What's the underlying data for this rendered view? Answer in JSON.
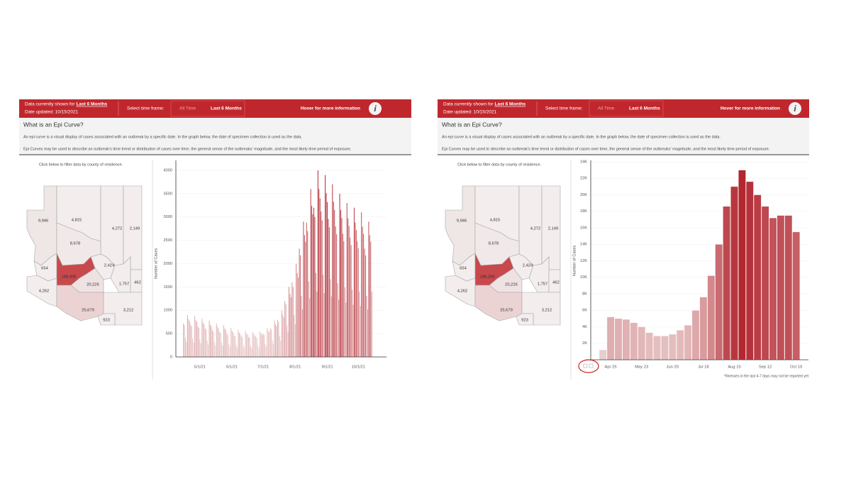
{
  "panels": [
    {
      "header": {
        "shown_prefix": "Data currently shown for",
        "shown_value": "Last 6 Months",
        "date_updated": "Date updated: 10/15/2021",
        "select_label": "Select time frame:",
        "options": [
          "All Time",
          "Last 6 Months"
        ],
        "hover": "Hover for more information",
        "info_icon": "i"
      },
      "intro": {
        "title": "What is an Epi Curve?",
        "paragraphs": [
          "An epi curve is a visual display of cases associated with an outbreak by a specific date. In the graph below, the date of specimen collection is used as the data.",
          "Epi Curves may be used to describe an outbreak's time trend or distribution of cases over time, the general sense of the outbreaks' magnitude, and the most likely time period of exposure."
        ]
      },
      "map": {
        "instruction": "Click below to filter data by county of residence.",
        "counties": [
          {
            "label": "9,946",
            "color": "#efe6e6"
          },
          {
            "label": "4,815",
            "color": "#f3eded"
          },
          {
            "label": "4,272",
            "color": "#f3eded"
          },
          {
            "label": "2,149",
            "color": "#f3eded"
          },
          {
            "label": "8,678",
            "color": "#f1e9e9"
          },
          {
            "label": "2,424",
            "color": "#f3eded"
          },
          {
            "label": "654",
            "color": "#f3eded"
          },
          {
            "label": "188,308",
            "color": "#c8484c"
          },
          {
            "label": "20,226",
            "color": "#efe2e2"
          },
          {
            "label": "1,757",
            "color": "#f3eded"
          },
          {
            "label": "462",
            "color": "#f3eded"
          },
          {
            "label": "4,262",
            "color": "#f3eded"
          },
          {
            "label": "25,679",
            "color": "#ecd3d3"
          },
          {
            "label": "3,212",
            "color": "#f3eded"
          },
          {
            "label": "923",
            "color": "#f3eded"
          }
        ]
      }
    },
    {
      "header": {
        "shown_prefix": "Data currently shown for",
        "shown_value": "Last 6 Months",
        "date_updated": "Date updated: 10/15/2021",
        "select_label": "Select time frame:",
        "options": [
          "All Time",
          "Last 6 Months"
        ],
        "hover": "Hover for more information",
        "info_icon": "i"
      },
      "intro": {
        "title": "What is an Epi Curve?",
        "paragraphs": [
          "An epi curve is a visual display of cases associated with an outbreak by a specific date. In the graph below, the date of specimen collection is used as the data.",
          "Epi Curves may be used to describe an outbreak's time trend or distribution of cases over time, the general sense of the outbreaks' magnitude, and the most likely time period of exposure."
        ]
      },
      "map": {
        "instruction": "Click below to filter data by county of residence.",
        "counties": [
          {
            "label": "9,946",
            "color": "#efe6e6"
          },
          {
            "label": "4,815",
            "color": "#f3eded"
          },
          {
            "label": "4,272",
            "color": "#f3eded"
          },
          {
            "label": "2,149",
            "color": "#f3eded"
          },
          {
            "label": "8,678",
            "color": "#f1e9e9"
          },
          {
            "label": "2,424",
            "color": "#f3eded"
          },
          {
            "label": "654",
            "color": "#f3eded"
          },
          {
            "label": "188,308",
            "color": "#c8484c"
          },
          {
            "label": "20,226",
            "color": "#efe2e2"
          },
          {
            "label": "1,757",
            "color": "#f3eded"
          },
          {
            "label": "462",
            "color": "#f3eded"
          },
          {
            "label": "4,262",
            "color": "#f3eded"
          },
          {
            "label": "25,679",
            "color": "#ecd3d3"
          },
          {
            "label": "3,212",
            "color": "#f3eded"
          },
          {
            "label": "923",
            "color": "#f3eded"
          }
        ]
      }
    }
  ],
  "chart_data": [
    {
      "type": "bar",
      "y_label": "Number of Cases",
      "categories": [
        null,
        null,
        null,
        null,
        null,
        null,
        null,
        null,
        null,
        null,
        null,
        null,
        null,
        null,
        null,
        null,
        "5/1/21",
        null,
        null,
        null,
        null,
        null,
        null,
        null,
        null,
        null,
        null,
        null,
        null,
        null,
        null,
        null,
        null,
        null,
        null,
        null,
        null,
        null,
        null,
        null,
        null,
        null,
        null,
        null,
        null,
        null,
        null,
        "6/1/21",
        null,
        null,
        null,
        null,
        null,
        null,
        null,
        null,
        null,
        null,
        null,
        null,
        null,
        null,
        null,
        null,
        null,
        null,
        null,
        null,
        null,
        null,
        null,
        null,
        null,
        null,
        null,
        null,
        null,
        "7/1/21",
        null,
        null,
        null,
        null,
        null,
        null,
        null,
        null,
        null,
        null,
        null,
        null,
        null,
        null,
        null,
        null,
        null,
        null,
        null,
        null,
        null,
        null,
        null,
        null,
        null,
        null,
        null,
        null,
        null,
        null,
        "8/1/21",
        null,
        null,
        null,
        null,
        null,
        null,
        null,
        null,
        null,
        null,
        null,
        null,
        null,
        null,
        null,
        null,
        null,
        null,
        null,
        null,
        null,
        null,
        null,
        null,
        null,
        null,
        null,
        null,
        null,
        null,
        "9/1/21",
        null,
        null,
        null,
        null,
        null,
        null,
        null,
        null,
        null,
        null,
        null,
        null,
        null,
        null,
        null,
        null,
        null,
        null,
        null,
        null,
        null,
        null,
        null,
        null,
        null,
        null,
        null,
        null,
        null,
        "10/1/21",
        null,
        null,
        null,
        null,
        null,
        null,
        null,
        null,
        null,
        null,
        null,
        null,
        null
      ],
      "values": [
        720,
        680,
        410,
        320,
        900,
        810,
        770,
        700,
        660,
        400,
        310,
        880,
        790,
        750,
        660,
        620,
        370,
        290,
        820,
        740,
        700,
        620,
        590,
        350,
        270,
        780,
        700,
        660,
        580,
        540,
        320,
        250,
        720,
        650,
        610,
        540,
        510,
        310,
        240,
        680,
        610,
        580,
        500,
        470,
        280,
        220,
        620,
        560,
        530,
        460,
        440,
        260,
        200,
        580,
        520,
        490,
        450,
        420,
        250,
        200,
        560,
        500,
        480,
        430,
        410,
        240,
        190,
        540,
        490,
        460,
        440,
        410,
        250,
        190,
        550,
        500,
        470,
        500,
        470,
        280,
        220,
        620,
        560,
        530,
        620,
        590,
        350,
        270,
        780,
        700,
        660,
        800,
        750,
        450,
        350,
        1000,
        900,
        850,
        1200,
        1130,
        680,
        530,
        1500,
        1350,
        1280,
        1600,
        1500,
        900,
        700,
        2000,
        1800,
        1700,
        2320,
        2180,
        1310,
        1020,
        2900,
        2610,
        2470,
        2880,
        2700,
        1620,
        1260,
        3600,
        3240,
        3060,
        3200,
        3000,
        1800,
        1400,
        4000,
        3600,
        3400,
        3120,
        2930,
        1760,
        1370,
        3900,
        3510,
        3320,
        2960,
        2780,
        1670,
        1300,
        3700,
        3330,
        3150,
        2800,
        2630,
        1580,
        1230,
        3500,
        3150,
        2980,
        2640,
        2480,
        1490,
        1160,
        3300,
        2970,
        2810,
        2560,
        2400,
        1440,
        1120,
        3200,
        2880,
        2720,
        2480,
        2330,
        1400,
        1090,
        3100,
        2790,
        2640,
        2320,
        2180,
        1310,
        1020,
        2900,
        2610,
        2470,
        1400
      ],
      "ylim": [
        0,
        4000
      ],
      "yticks": [
        0,
        500,
        1000,
        1500,
        2000,
        2500,
        3000,
        3500,
        4000
      ],
      "grid": true,
      "color_scale": [
        "#ecd5d5",
        "#b01f28"
      ]
    },
    {
      "type": "bar",
      "y_label": "Number of Cases",
      "categories": [
        null,
        "Apr 25",
        null,
        null,
        null,
        "May 23",
        null,
        null,
        null,
        "Jun 20",
        null,
        null,
        null,
        "Jul 18",
        null,
        null,
        null,
        "Aug 15",
        null,
        null,
        null,
        "Sep 12",
        null,
        null,
        null,
        "Oct 10"
      ],
      "values": [
        1200,
        5200,
        5000,
        4900,
        4500,
        4000,
        3300,
        2900,
        2900,
        3100,
        3600,
        4200,
        6000,
        7600,
        10200,
        14000,
        18600,
        21000,
        23000,
        21600,
        20000,
        18600,
        17200,
        17500,
        17500,
        15500
      ],
      "ylim": [
        0,
        24000
      ],
      "yticks": [
        {
          "value": 2000,
          "label": "2K"
        },
        {
          "value": 4000,
          "label": "4K"
        },
        {
          "value": 6000,
          "label": "6K"
        },
        {
          "value": 8000,
          "label": "8K"
        },
        {
          "value": 10000,
          "label": "10K"
        },
        {
          "value": 12000,
          "label": "12K"
        },
        {
          "value": 14000,
          "label": "14K"
        },
        {
          "value": 16000,
          "label": "16K"
        },
        {
          "value": 18000,
          "label": "18K"
        },
        {
          "value": 20000,
          "label": "20K"
        },
        {
          "value": 22000,
          "label": "22K"
        },
        {
          "value": 24000,
          "label": "24K"
        }
      ],
      "grid": true,
      "color_scale": [
        "#ecd5d5",
        "#b01f28"
      ],
      "footnote": "*Illnesses in the last 4-7 days may not be reported yet"
    }
  ]
}
